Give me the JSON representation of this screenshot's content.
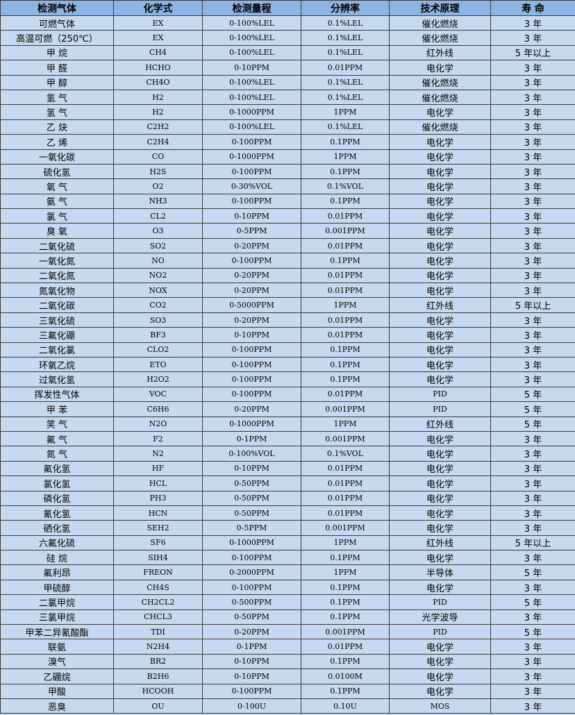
{
  "colors": {
    "header_bg": "#8db4e2",
    "row_bg": "#c5d9f1",
    "border": "#3a3a3a"
  },
  "headers": [
    "检测气体",
    "化学式",
    "检测量程",
    "分辨率",
    "技术原理",
    "寿 命"
  ],
  "rows": [
    [
      "可燃气体",
      "EX",
      "0-100%LEL",
      "0.1%LEL",
      "催化燃烧",
      "3 年"
    ],
    [
      "高温可燃（250℃）",
      "EX",
      "0-100%LEL",
      "0.1%LEL",
      "催化燃烧",
      "3 年"
    ],
    [
      "甲 烷",
      "CH4",
      "0-100%LEL",
      "0.1%LEL",
      "红外线",
      "5 年以上"
    ],
    [
      "甲 醛",
      "HCHO",
      "0-10PPM",
      "0.01PPM",
      "电化学",
      "3 年"
    ],
    [
      "甲 醇",
      "CH4O",
      "0-100%LEL",
      "0.1%LEL",
      "催化燃烧",
      "3 年"
    ],
    [
      "氢 气",
      "H2",
      "0-100%LEL",
      "0.1%LEL",
      "催化燃烧",
      "3 年"
    ],
    [
      "氢 气",
      "H2",
      "0-1000PPM",
      "1PPM",
      "电化学",
      "3 年"
    ],
    [
      "乙 炔",
      "C2H2",
      "0-100%LEL",
      "0.1%LEL",
      "催化燃烧",
      "3 年"
    ],
    [
      "乙 烯",
      "C2H4",
      "0-100PPM",
      "0.1PPM",
      "电化学",
      "3 年"
    ],
    [
      "一氧化碳",
      "CO",
      "0-1000PPM",
      "1PPM",
      "电化学",
      "3 年"
    ],
    [
      "硫化氢",
      "H2S",
      "0-100PPM",
      "0.1PPM",
      "电化学",
      "3 年"
    ],
    [
      "氧 气",
      "O2",
      "0-30%VOL",
      "0.1%VOL",
      "电化学",
      "3 年"
    ],
    [
      "氨 气",
      "NH3",
      "0-100PPM",
      "0.1PPM",
      "电化学",
      "3 年"
    ],
    [
      "氯 气",
      "CL2",
      "0-10PPM",
      "0.01PPM",
      "电化学",
      "3 年"
    ],
    [
      "臭 氧",
      "O3",
      "0-5PPM",
      "0.001PPM",
      "电化学",
      "3 年"
    ],
    [
      "二氧化硫",
      "SO2",
      "0-20PPM",
      "0.01PPM",
      "电化学",
      "3 年"
    ],
    [
      "一氧化氮",
      "NO",
      "0-100PPM",
      "0.1PPM",
      "电化学",
      "3 年"
    ],
    [
      "二氧化氮",
      "NO2",
      "0-20PPM",
      "0.01PPM",
      "电化学",
      "3 年"
    ],
    [
      "氮氧化物",
      "NOX",
      "0-20PPM",
      "0.01PPM",
      "电化学",
      "3 年"
    ],
    [
      "二氧化碳",
      "CO2",
      "0-5000PPM",
      "1PPM",
      "红外线",
      "5 年以上"
    ],
    [
      "三氧化硫",
      "SO3",
      "0-20PPM",
      "0.01PPM",
      "电化学",
      "3 年"
    ],
    [
      "三氟化硼",
      "BF3",
      "0-10PPM",
      "0.01PPM",
      "电化学",
      "3 年"
    ],
    [
      "二氧化氯",
      "CLO2",
      "0-100PPM",
      "0.1PPM",
      "电化学",
      "3 年"
    ],
    [
      "环氧乙烷",
      "ETO",
      "0-100PPM",
      "0.1PPM",
      "电化学",
      "3 年"
    ],
    [
      "过氧化氢",
      "H2O2",
      "0-100PPM",
      "0.1PPM",
      "电化学",
      "3 年"
    ],
    [
      "挥发性气体",
      "VOC",
      "0-100PPM",
      "0.01PPM",
      "PID",
      "5 年"
    ],
    [
      "甲 苯",
      "C6H6",
      "0-20PPM",
      "0.001PPM",
      "PID",
      "5 年"
    ],
    [
      "笑 气",
      "N2O",
      "0-1000PPM",
      "1PPM",
      "红外线",
      "5 年"
    ],
    [
      "氟 气",
      "F2",
      "0-1PPM",
      "0.001PPM",
      "电化学",
      "3 年"
    ],
    [
      "氮 气",
      "N2",
      "0-100%VOL",
      "0.1%VOL",
      "电化学",
      "3 年"
    ],
    [
      "氟化氢",
      "HF",
      "0-10PPM",
      "0.01PPM",
      "电化学",
      "3 年"
    ],
    [
      "氯化氢",
      "HCL",
      "0-50PPM",
      "0.01PPM",
      "电化学",
      "3 年"
    ],
    [
      "磷化氢",
      "PH3",
      "0-50PPM",
      "0.01PPM",
      "电化学",
      "3 年"
    ],
    [
      "氰化氢",
      "HCN",
      "0-50PPM",
      "0.01PPM",
      "电化学",
      "3 年"
    ],
    [
      "硒化氢",
      "SEH2",
      "0-5PPM",
      "0.001PPM",
      "电化学",
      "3 年"
    ],
    [
      "六氟化硫",
      "SF6",
      "0-1000PPM",
      "1PPM",
      "红外线",
      "5 年以上"
    ],
    [
      "硅 烷",
      "SIH4",
      "0-100PPM",
      "0.1PPM",
      "电化学",
      "3 年"
    ],
    [
      "氟利昂",
      "FREON",
      "0-2000PPM",
      "1PPM",
      "半导体",
      "5 年"
    ],
    [
      "甲硫醇",
      "CH4S",
      "0-100PPM",
      "0.1PPM",
      "电化学",
      "3 年"
    ],
    [
      "二氯甲烷",
      "CH2CL2",
      "0-500PPM",
      "0.1PPM",
      "PID",
      "5 年"
    ],
    [
      "三氯甲烷",
      "CHCL3",
      "0-50PPM",
      "0.1PPM",
      "光学波导",
      "3 年"
    ],
    [
      "甲苯二异氰酸酯",
      "TDI",
      "0-20PPM",
      "0.001PPM",
      "PID",
      "5 年"
    ],
    [
      "联氨",
      "N2H4",
      "0-1PPM",
      "0.01PPM",
      "电化学",
      "3 年"
    ],
    [
      "溴气",
      "BR2",
      "0-10PPM",
      "0.1PPM",
      "电化学",
      "3 年"
    ],
    [
      "乙硼烷",
      "B2H6",
      "0-10PPM",
      "0.0100M",
      "电化学",
      "3 年"
    ],
    [
      "甲酸",
      "HCOOH",
      "0-100PPM",
      "0.1PPM",
      "电化学",
      "3 年"
    ],
    [
      "恶臭",
      "OU",
      "0-100U",
      "0.10U",
      "MOS",
      "3 年"
    ]
  ]
}
